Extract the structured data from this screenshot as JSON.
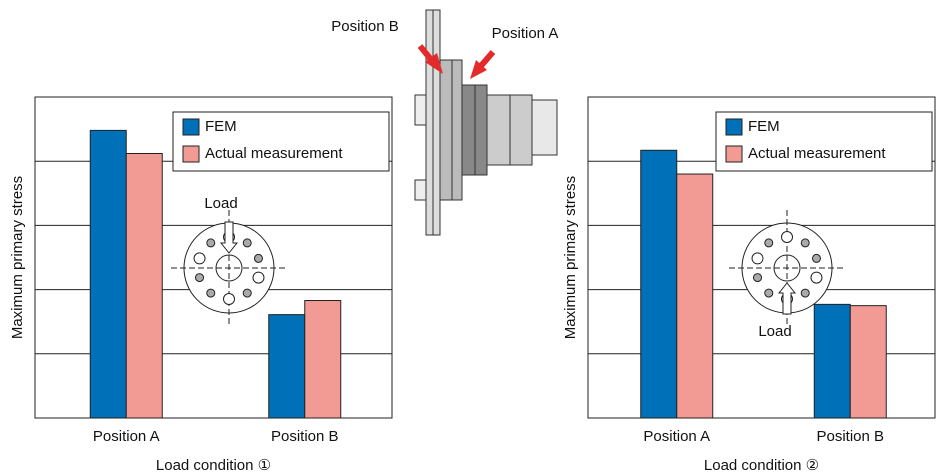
{
  "figure": {
    "labels": [
      "Position B",
      "Position A"
    ]
  },
  "chart_data": [
    {
      "type": "bar",
      "x_title": "Load condition ①",
      "y_title": "Maximum primary stress",
      "categories": [
        "Position A",
        "Position B"
      ],
      "series": [
        {
          "name": "FEM",
          "color": "#0070b8",
          "values": [
            4.48,
            1.61
          ]
        },
        {
          "name": "Actual measurement",
          "color": "#f29a94",
          "values": [
            4.12,
            1.83
          ]
        }
      ],
      "ylim": [
        0,
        5
      ],
      "gridlines": [
        1,
        2,
        3,
        4
      ],
      "legend": "upper right",
      "annotation": "Load"
    },
    {
      "type": "bar",
      "x_title": "Load condition ②",
      "y_title": "Maximum primary stress",
      "categories": [
        "Position A",
        "Position B"
      ],
      "series": [
        {
          "name": "FEM",
          "color": "#0070b8",
          "values": [
            4.17,
            1.77
          ]
        },
        {
          "name": "Actual measurement",
          "color": "#f29a94",
          "values": [
            3.8,
            1.75
          ]
        }
      ],
      "ylim": [
        0,
        5
      ],
      "gridlines": [
        1,
        2,
        3,
        4
      ],
      "legend": "upper right",
      "annotation": "Load"
    }
  ]
}
